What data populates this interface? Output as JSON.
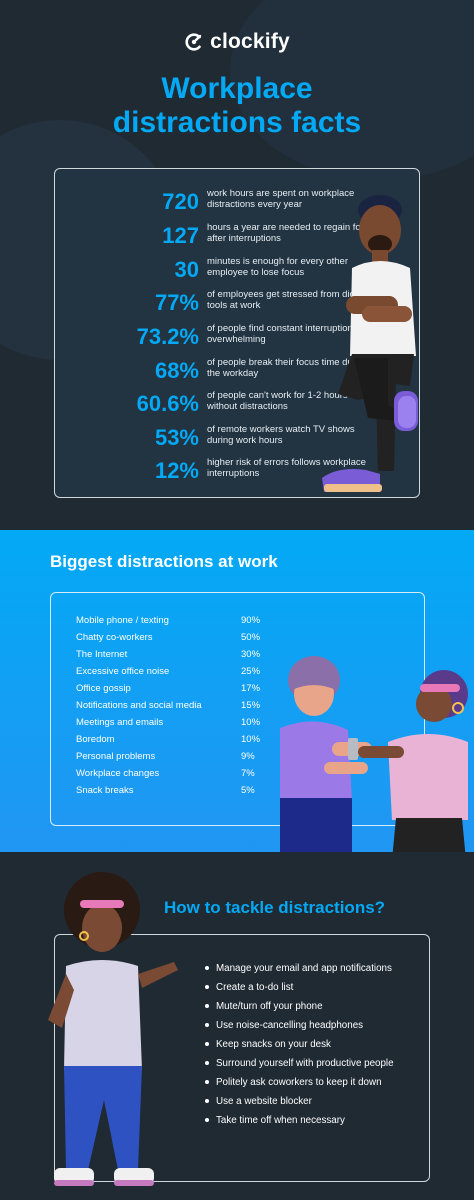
{
  "brand": {
    "name": "clockify",
    "accent": "#03a9f4",
    "dark_bg": "#1f2a33"
  },
  "header": {
    "title_line1": "Workplace",
    "title_line2": "distractions facts"
  },
  "facts": [
    {
      "value": "720",
      "text": "work hours are spent on workplace distractions every year"
    },
    {
      "value": "127",
      "text": "hours a year are needed to regain focus after interruptions"
    },
    {
      "value": "30",
      "text": "minutes is enough for every other employee to lose focus"
    },
    {
      "value": "77%",
      "text": "of employees get stressed from digital tools at work"
    },
    {
      "value": "73.2%",
      "text": "of people find constant interruptions overwhelming"
    },
    {
      "value": "68%",
      "text": "of people break their focus time during the workday"
    },
    {
      "value": "60.6%",
      "text": "of people can't work for 1-2 hours without distractions"
    },
    {
      "value": "53%",
      "text": "of remote workers watch TV shows during work hours"
    },
    {
      "value": "12%",
      "text": "higher risk of errors follows workplace interruptions"
    }
  ],
  "distractions": {
    "title": "Biggest distractions at work",
    "items": [
      {
        "label": "Mobile phone / texting",
        "percent": "90%"
      },
      {
        "label": "Chatty co-workers",
        "percent": "50%"
      },
      {
        "label": "The Internet",
        "percent": "30%"
      },
      {
        "label": "Excessive office noise",
        "percent": "25%"
      },
      {
        "label": "Office gossip",
        "percent": "17%"
      },
      {
        "label": "Notifications and social media",
        "percent": "15%"
      },
      {
        "label": "Meetings and emails",
        "percent": "10%"
      },
      {
        "label": "Boredom",
        "percent": "10%"
      },
      {
        "label": "Personal problems",
        "percent": "9%"
      },
      {
        "label": "Workplace changes",
        "percent": "7%"
      },
      {
        "label": "Snack breaks",
        "percent": "5%"
      }
    ]
  },
  "tackle": {
    "title": "How to tackle distractions?",
    "tips": [
      "Manage your email and app notifications",
      "Create a to-do list",
      "Mute/turn off your phone",
      "Use noise-cancelling headphones",
      "Keep snacks on your desk",
      "Surround yourself with productive people",
      "Politely ask coworkers to keep it down",
      "Use a website blocker",
      "Take time off when necessary"
    ]
  }
}
